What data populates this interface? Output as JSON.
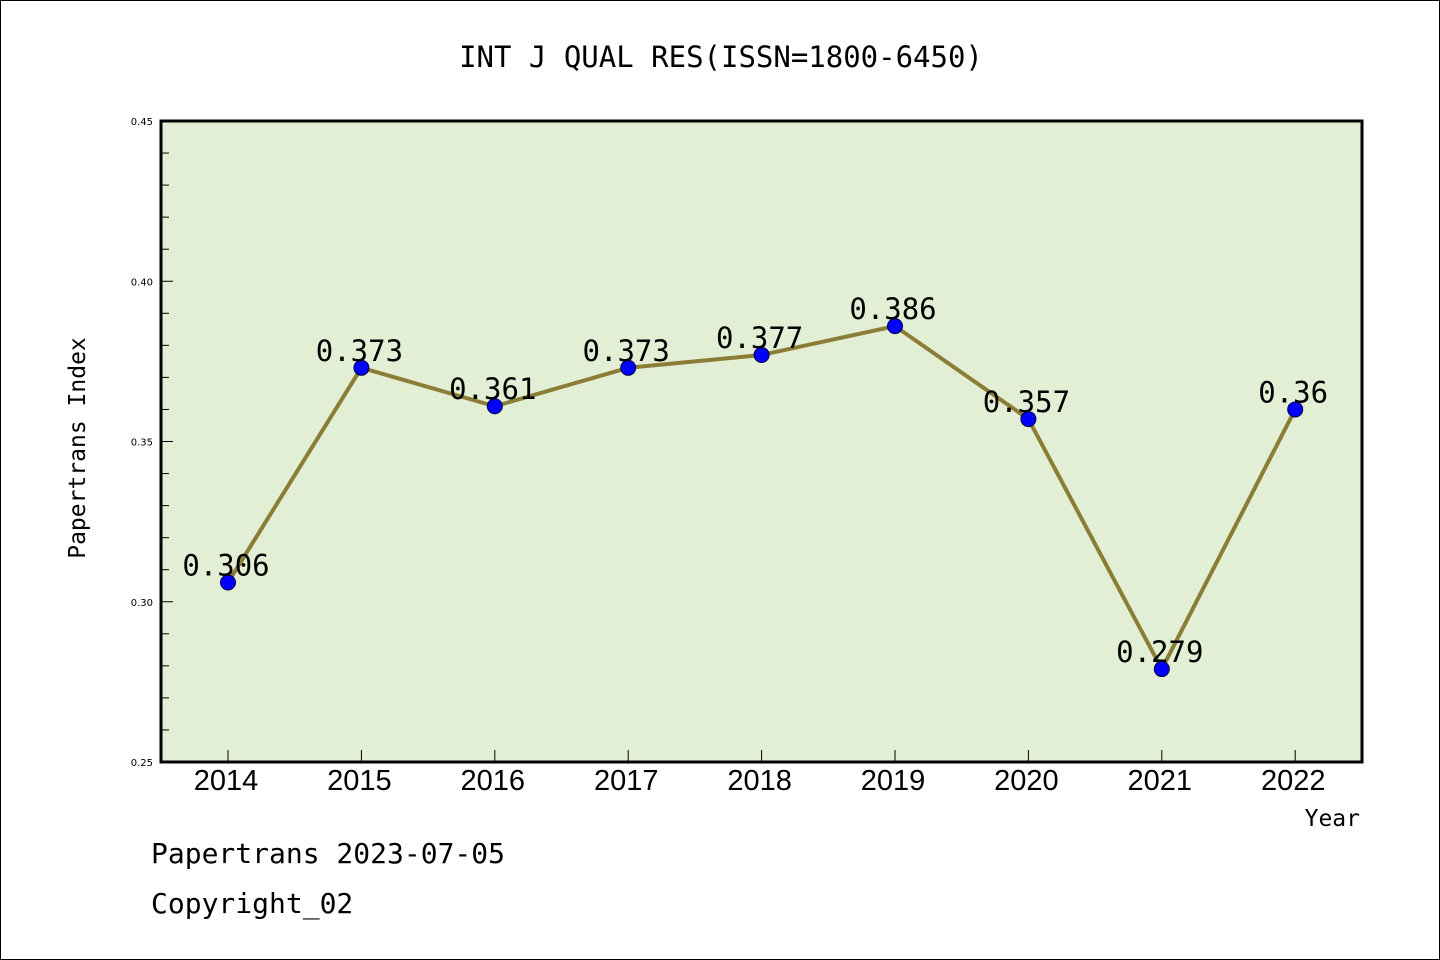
{
  "chart_data": {
    "type": "line",
    "title": "INT J QUAL RES(ISSN=1800-6450)",
    "xlabel": "Year",
    "ylabel": "Papertrans Index",
    "categories": [
      "2014",
      "2015",
      "2016",
      "2017",
      "2018",
      "2019",
      "2020",
      "2021",
      "2022"
    ],
    "values": [
      0.306,
      0.373,
      0.361,
      0.373,
      0.377,
      0.386,
      0.357,
      0.279,
      0.36
    ],
    "data_labels": [
      "0.306",
      "0.373",
      "0.361",
      "0.373",
      "0.377",
      "0.386",
      "0.357",
      "0.279",
      "0.36"
    ],
    "ylim": [
      0.25,
      0.45
    ],
    "yticks": [
      "0.25",
      "0.30",
      "0.35",
      "0.40",
      "0.45"
    ],
    "grid": false,
    "colors": {
      "plot_background": "#e2efd4",
      "line": "#8b7d35",
      "marker": "#0000ff"
    }
  },
  "footer": {
    "source": "Papertrans 2023-07-05",
    "copyright": "Copyright_02"
  }
}
